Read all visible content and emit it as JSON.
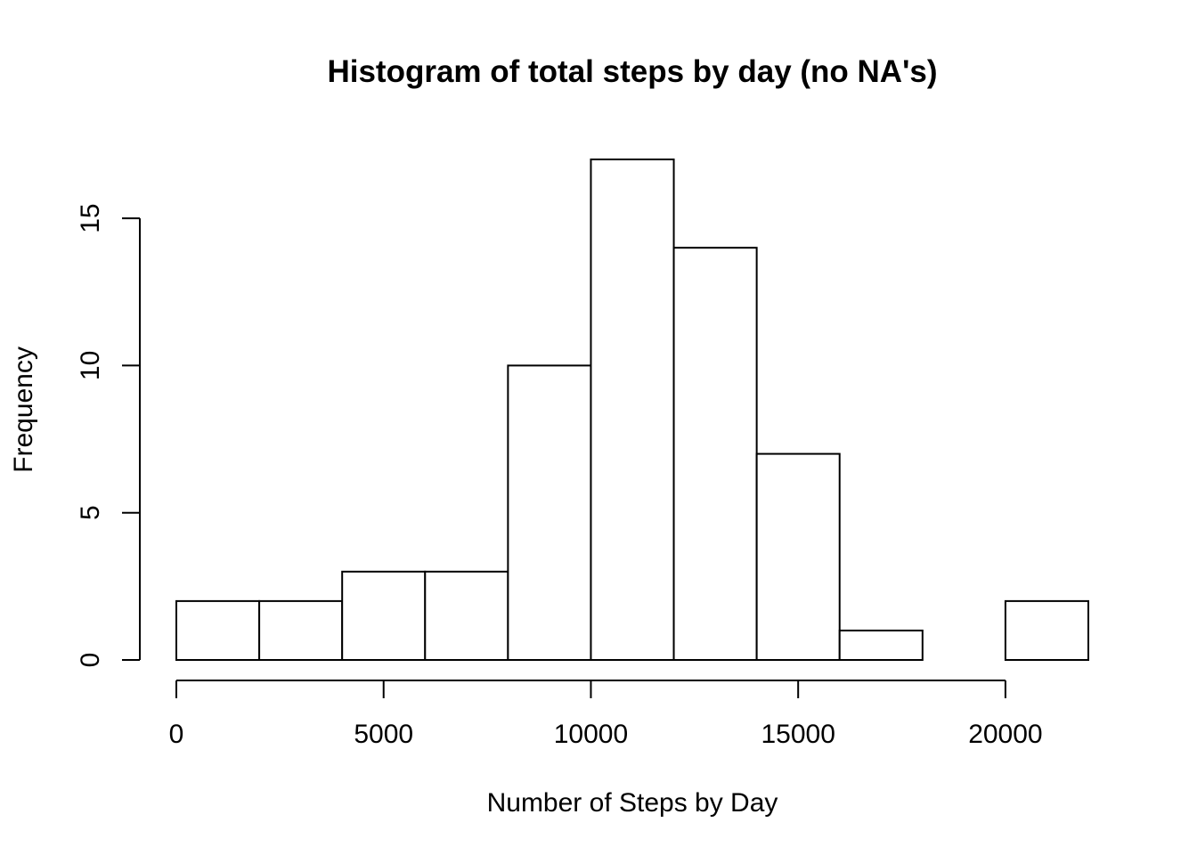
{
  "chart_data": {
    "type": "bar",
    "title": "Histogram of total steps by day (no NA's)",
    "xlabel": "Number of Steps by Day",
    "ylabel": "Frequency",
    "bin_edges": [
      0,
      2000,
      4000,
      6000,
      8000,
      10000,
      12000,
      14000,
      16000,
      18000,
      20000,
      22000
    ],
    "values": [
      2,
      2,
      3,
      3,
      10,
      17,
      14,
      7,
      1,
      0,
      2
    ],
    "xlim": [
      0,
      22000
    ],
    "ylim": [
      0,
      17
    ],
    "x_ticks": [
      0,
      5000,
      10000,
      15000,
      20000
    ],
    "x_tick_labels": [
      "0",
      "5000",
      "10000",
      "15000",
      "20000"
    ],
    "y_ticks": [
      0,
      5,
      10,
      15
    ],
    "y_tick_labels": [
      "0",
      "5",
      "10",
      "15"
    ],
    "grid": false,
    "legend": "none",
    "colors": {
      "bar_fill": "#ffffff",
      "bar_stroke": "#000000"
    }
  }
}
